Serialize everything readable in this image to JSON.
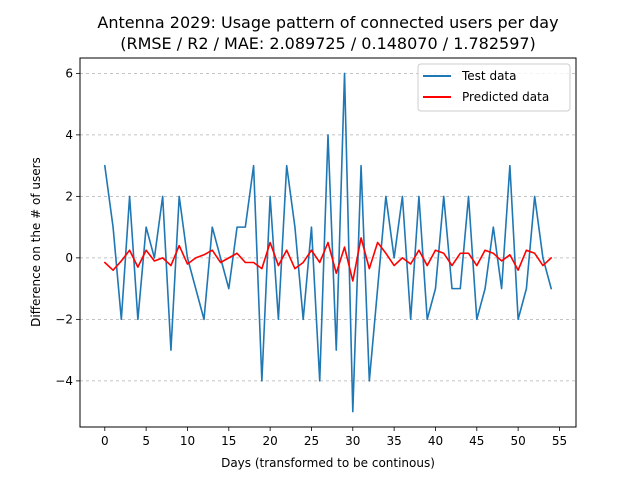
{
  "chart_data": {
    "type": "line",
    "title": "Antenna 2029: Usage pattern of connected users per day",
    "subtitle": "(RMSE / R2 / MAE: 2.089725 / 0.148070 / 1.782597)",
    "xlabel": "Days (transformed to be continous)",
    "ylabel": "Difference on the # of users",
    "xlim": [
      -3,
      57
    ],
    "ylim": [
      -5.5,
      6.5
    ],
    "xticks": [
      0,
      5,
      10,
      15,
      20,
      25,
      30,
      35,
      40,
      45,
      50,
      55
    ],
    "yticks": [
      -4,
      -2,
      0,
      2,
      4,
      6
    ],
    "grid": "horizontal dashed",
    "legend_position": "top-right",
    "x": [
      0,
      1,
      2,
      3,
      4,
      5,
      6,
      7,
      8,
      9,
      10,
      11,
      12,
      13,
      14,
      15,
      16,
      17,
      18,
      19,
      20,
      21,
      22,
      23,
      24,
      25,
      26,
      27,
      28,
      29,
      30,
      31,
      32,
      33,
      34,
      35,
      36,
      37,
      38,
      39,
      40,
      41,
      42,
      43,
      44,
      45,
      46,
      47,
      48,
      49,
      50,
      51,
      52,
      53,
      54
    ],
    "series": [
      {
        "name": "Test data",
        "color": "#1f77b4",
        "values": [
          3,
          1,
          -2,
          2,
          -2,
          1,
          0,
          2,
          -3,
          2,
          0,
          -1,
          -2,
          1,
          0,
          -1,
          1,
          1,
          3,
          -4,
          2,
          -2,
          3,
          1,
          -2,
          1,
          -4,
          4,
          -3,
          6,
          -5,
          3,
          -4,
          -1,
          2,
          0,
          2,
          -2,
          2,
          -2,
          -1,
          2,
          -1,
          -1,
          2,
          -2,
          -1,
          1,
          -1,
          3,
          -2,
          -1,
          2,
          0,
          -1
        ]
      },
      {
        "name": "Predicted data",
        "color": "#ff0000",
        "values": [
          -0.15,
          -0.4,
          -0.1,
          0.25,
          -0.3,
          0.25,
          -0.1,
          0.0,
          -0.25,
          0.4,
          -0.2,
          0.0,
          0.1,
          0.25,
          -0.15,
          0.0,
          0.15,
          -0.15,
          -0.15,
          -0.35,
          0.5,
          -0.25,
          0.25,
          -0.35,
          -0.15,
          0.25,
          -0.15,
          0.5,
          -0.5,
          0.35,
          -0.75,
          0.65,
          -0.35,
          0.5,
          0.15,
          -0.25,
          0.0,
          -0.2,
          0.25,
          -0.25,
          0.25,
          0.15,
          -0.25,
          0.15,
          0.15,
          -0.25,
          0.25,
          0.15,
          -0.1,
          0.1,
          -0.4,
          0.25,
          0.15,
          -0.25,
          0.0
        ]
      }
    ]
  }
}
